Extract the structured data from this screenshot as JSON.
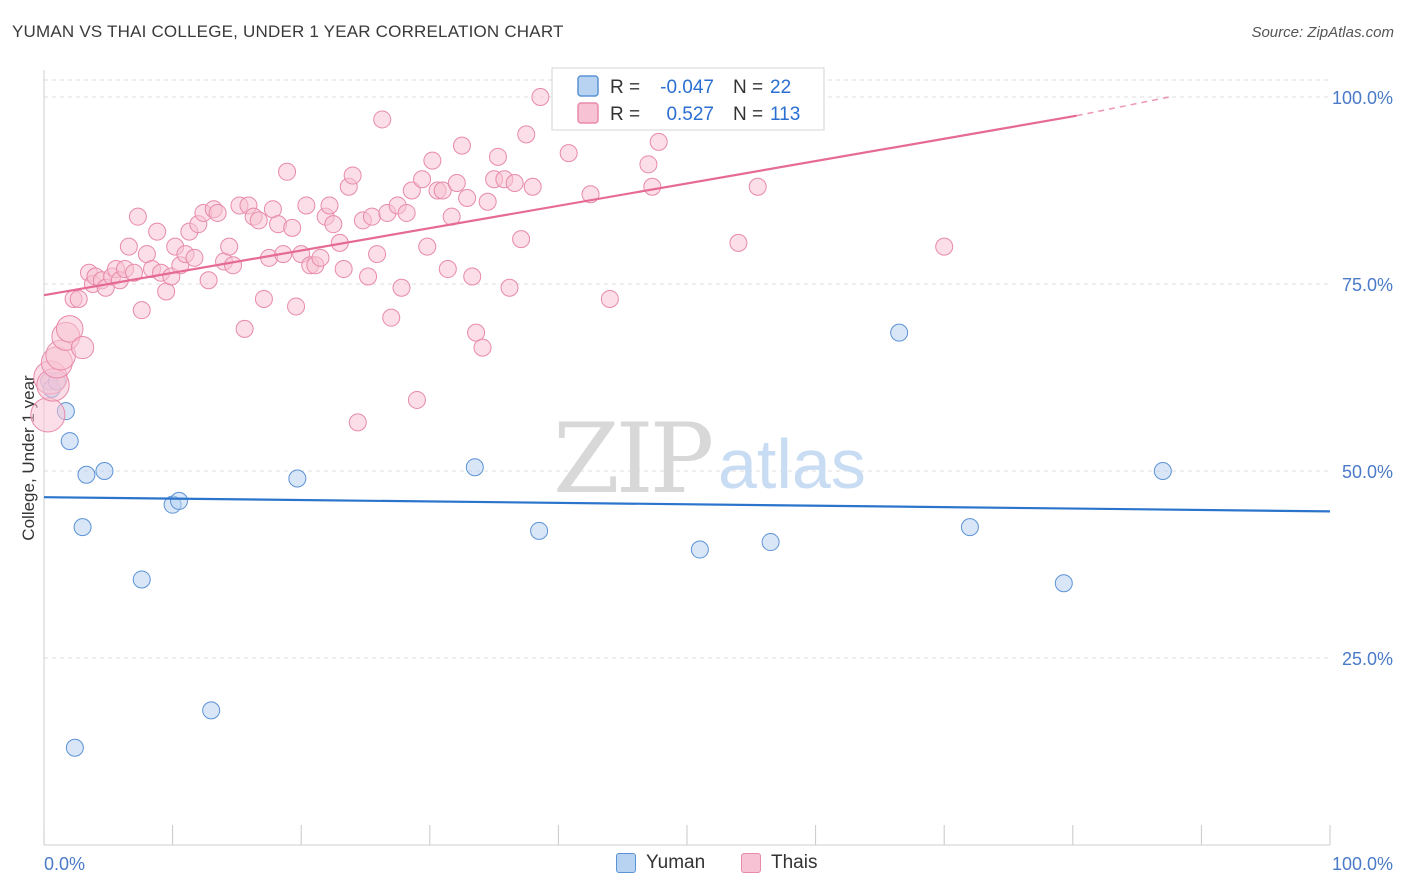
{
  "title": "YUMAN VS THAI COLLEGE, UNDER 1 YEAR CORRELATION CHART",
  "source": "Source: ZipAtlas.com",
  "watermark": {
    "zip": "ZIP",
    "atlas": "atlas"
  },
  "colors": {
    "yuman_fill": "#b8d2f2",
    "yuman_stroke": "#5c93d6",
    "yuman_line": "#2a74cc",
    "thai_fill": "#f7c3d4",
    "thai_stroke": "#e88aaa",
    "thai_line": "#e56a95",
    "tick_label": "#4a7ac8",
    "grid": "#dddddd"
  },
  "legend": {
    "rows": [
      {
        "series": "Yuman",
        "r_label": "R =",
        "r_value": "-0.047",
        "n_label": "N =",
        "n_value": "22"
      },
      {
        "series": "Thais",
        "r_label": "R =",
        "r_value": "0.527",
        "n_label": "N =",
        "n_value": "113"
      }
    ]
  },
  "bottom_legend": [
    {
      "label": "Yuman"
    },
    {
      "label": "Thais"
    }
  ],
  "chart_data": {
    "type": "scatter",
    "xlabel": "",
    "ylabel": "College, Under 1 year",
    "xlim": [
      0,
      100
    ],
    "ylim": [
      0,
      102
    ],
    "x_tick_labels": [
      "0.0%",
      "100.0%"
    ],
    "y_ticks": [
      25,
      50,
      75,
      100
    ],
    "y_tick_labels": [
      "25.0%",
      "50.0%",
      "75.0%",
      "100.0%"
    ],
    "series": [
      {
        "name": "Yuman",
        "trend": {
          "x": [
            0,
            100
          ],
          "y": [
            46.5,
            44.6
          ]
        },
        "points": [
          [
            0.4,
            62
          ],
          [
            0.6,
            61
          ],
          [
            1.0,
            62
          ],
          [
            1.7,
            58
          ],
          [
            2.0,
            54
          ],
          [
            3.0,
            42.5
          ],
          [
            3.3,
            49.5
          ],
          [
            4.7,
            50
          ],
          [
            7.6,
            35.5
          ],
          [
            10.0,
            45.5
          ],
          [
            10.5,
            46
          ],
          [
            13.0,
            18
          ],
          [
            19.7,
            49
          ],
          [
            2.4,
            13
          ],
          [
            33.5,
            50.5
          ],
          [
            38.5,
            42
          ],
          [
            51.0,
            39.5
          ],
          [
            56.5,
            40.5
          ],
          [
            66.5,
            68.5
          ],
          [
            72.0,
            42.5
          ],
          [
            79.3,
            35
          ],
          [
            87.0,
            50
          ]
        ]
      },
      {
        "name": "Thais",
        "trend": {
          "x": [
            0,
            80.3
          ],
          "y": [
            73.5,
            97.5
          ],
          "dashed_x": [
            80.3,
            87.5
          ],
          "dashed_y": [
            97.5,
            100
          ]
        },
        "points": [
          [
            0.3,
            57.5
          ],
          [
            0.5,
            62.5
          ],
          [
            0.7,
            61.5
          ],
          [
            1.0,
            64.5
          ],
          [
            1.3,
            65.5
          ],
          [
            1.7,
            68
          ],
          [
            2.0,
            69
          ],
          [
            2.3,
            73
          ],
          [
            2.7,
            73
          ],
          [
            3.0,
            66.5
          ],
          [
            3.5,
            76.5
          ],
          [
            3.8,
            75
          ],
          [
            4.0,
            76
          ],
          [
            4.5,
            75.5
          ],
          [
            4.8,
            74.5
          ],
          [
            5.3,
            76
          ],
          [
            5.6,
            77
          ],
          [
            5.9,
            75.5
          ],
          [
            6.3,
            77
          ],
          [
            6.6,
            80
          ],
          [
            7.0,
            76.5
          ],
          [
            7.3,
            84
          ],
          [
            7.6,
            71.5
          ],
          [
            8.0,
            79
          ],
          [
            8.4,
            77
          ],
          [
            8.8,
            82
          ],
          [
            9.1,
            76.5
          ],
          [
            9.5,
            74
          ],
          [
            9.9,
            76
          ],
          [
            10.2,
            80
          ],
          [
            10.6,
            77.5
          ],
          [
            11.0,
            79
          ],
          [
            11.3,
            82
          ],
          [
            11.7,
            78.5
          ],
          [
            12.0,
            83
          ],
          [
            12.4,
            84.5
          ],
          [
            12.8,
            75.5
          ],
          [
            13.2,
            85
          ],
          [
            13.5,
            84.5
          ],
          [
            14.0,
            78
          ],
          [
            14.4,
            80
          ],
          [
            14.7,
            77.5
          ],
          [
            15.2,
            85.5
          ],
          [
            15.6,
            69
          ],
          [
            15.9,
            85.5
          ],
          [
            16.3,
            84
          ],
          [
            16.7,
            83.5
          ],
          [
            17.1,
            73
          ],
          [
            17.5,
            78.5
          ],
          [
            17.8,
            85
          ],
          [
            18.2,
            83
          ],
          [
            18.6,
            79
          ],
          [
            18.9,
            90
          ],
          [
            19.3,
            82.5
          ],
          [
            19.6,
            72
          ],
          [
            20.0,
            79
          ],
          [
            20.4,
            85.5
          ],
          [
            20.7,
            77.5
          ],
          [
            21.1,
            77.5
          ],
          [
            21.5,
            78.5
          ],
          [
            21.9,
            84
          ],
          [
            22.2,
            85.5
          ],
          [
            22.5,
            83
          ],
          [
            23.0,
            80.5
          ],
          [
            23.3,
            77
          ],
          [
            23.7,
            88
          ],
          [
            24.0,
            89.5
          ],
          [
            24.4,
            56.5
          ],
          [
            24.8,
            83.5
          ],
          [
            25.2,
            76
          ],
          [
            25.5,
            84
          ],
          [
            25.9,
            79
          ],
          [
            26.3,
            97
          ],
          [
            26.7,
            84.5
          ],
          [
            27.0,
            70.5
          ],
          [
            27.5,
            85.5
          ],
          [
            27.8,
            74.5
          ],
          [
            28.2,
            84.5
          ],
          [
            28.6,
            87.5
          ],
          [
            29.0,
            59.5
          ],
          [
            29.4,
            89
          ],
          [
            29.8,
            80
          ],
          [
            30.2,
            91.5
          ],
          [
            30.6,
            87.5
          ],
          [
            31.0,
            87.5
          ],
          [
            31.4,
            77
          ],
          [
            31.7,
            84
          ],
          [
            32.1,
            88.5
          ],
          [
            32.5,
            93.5
          ],
          [
            32.9,
            86.5
          ],
          [
            33.3,
            76
          ],
          [
            33.6,
            68.5
          ],
          [
            34.1,
            66.5
          ],
          [
            34.5,
            86
          ],
          [
            35.0,
            89
          ],
          [
            35.3,
            92
          ],
          [
            35.8,
            89
          ],
          [
            36.2,
            74.5
          ],
          [
            36.6,
            88.5
          ],
          [
            37.1,
            81
          ],
          [
            37.5,
            95
          ],
          [
            38.0,
            88
          ],
          [
            38.6,
            100
          ],
          [
            40.8,
            92.5
          ],
          [
            42.5,
            87
          ],
          [
            44.0,
            73
          ],
          [
            47.0,
            91
          ],
          [
            47.3,
            88
          ],
          [
            47.8,
            94
          ],
          [
            48.2,
            100
          ],
          [
            54.0,
            80.5
          ],
          [
            55.5,
            88
          ],
          [
            70.0,
            80
          ]
        ]
      }
    ]
  }
}
